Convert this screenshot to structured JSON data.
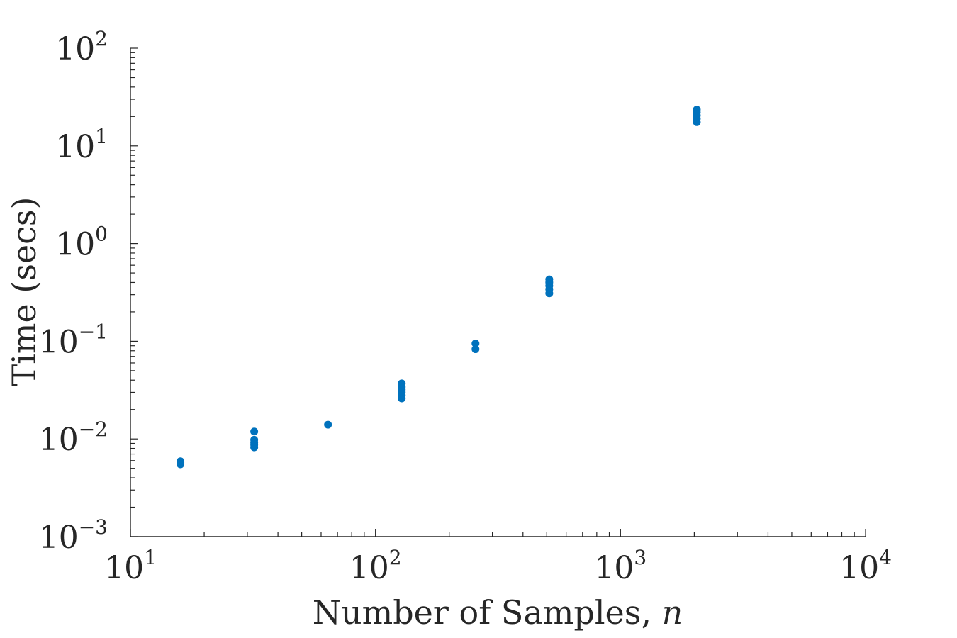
{
  "chart_data": {
    "type": "scatter",
    "title": "",
    "xlabel": "Number of Samples, ",
    "xlabel_var": "n",
    "ylabel": "Time (secs)",
    "xscale": "log",
    "yscale": "log",
    "xlim": [
      10,
      10000
    ],
    "ylim": [
      0.001,
      100
    ],
    "grid": false,
    "x_ticks": [
      10,
      100,
      1000,
      10000
    ],
    "y_ticks": [
      0.001,
      0.01,
      0.1,
      1,
      10,
      100
    ],
    "x_tick_labels": [
      {
        "base": "10",
        "exp": "1"
      },
      {
        "base": "10",
        "exp": "2"
      },
      {
        "base": "10",
        "exp": "3"
      },
      {
        "base": "10",
        "exp": "4"
      }
    ],
    "y_tick_labels": [
      {
        "base": "10",
        "exp": "−3"
      },
      {
        "base": "10",
        "exp": "−2"
      },
      {
        "base": "10",
        "exp": "−1"
      },
      {
        "base": "10",
        "exp": "0"
      },
      {
        "base": "10",
        "exp": "1"
      },
      {
        "base": "10",
        "exp": "2"
      }
    ],
    "marker_color": "#0072BD",
    "series": [
      {
        "points": [
          [
            16,
            0.0055
          ],
          [
            16,
            0.0057
          ],
          [
            16,
            0.0059
          ],
          [
            32,
            0.0082
          ],
          [
            32,
            0.0087
          ],
          [
            32,
            0.0092
          ],
          [
            32,
            0.0098
          ],
          [
            32,
            0.0119
          ],
          [
            64,
            0.014
          ],
          [
            128,
            0.026
          ],
          [
            128,
            0.028
          ],
          [
            128,
            0.03
          ],
          [
            128,
            0.032
          ],
          [
            128,
            0.034
          ],
          [
            128,
            0.037
          ],
          [
            256,
            0.083
          ],
          [
            256,
            0.095
          ],
          [
            512,
            0.31
          ],
          [
            512,
            0.34
          ],
          [
            512,
            0.37
          ],
          [
            512,
            0.4
          ],
          [
            512,
            0.43
          ],
          [
            2048,
            17.5
          ],
          [
            2048,
            19.0
          ],
          [
            2048,
            20.5
          ],
          [
            2048,
            22.0
          ],
          [
            2048,
            23.5
          ]
        ]
      }
    ]
  }
}
